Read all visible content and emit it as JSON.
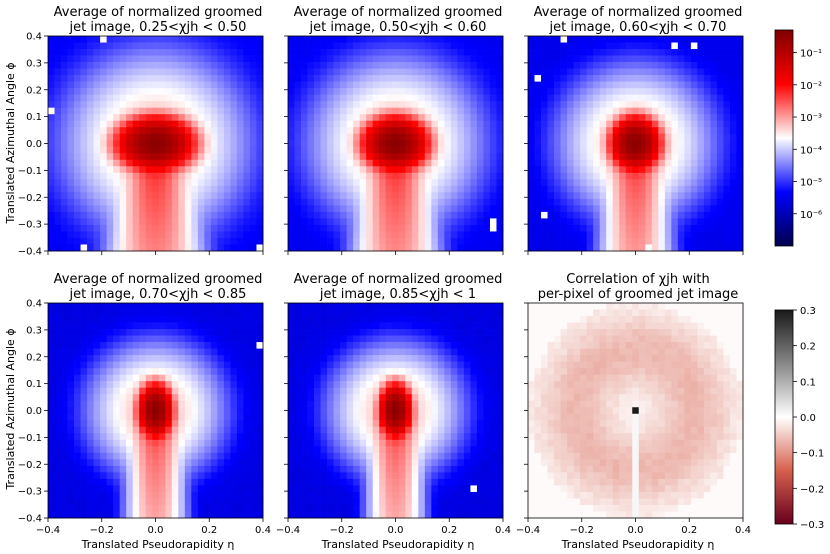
{
  "chart_data": {
    "type": "heatmap",
    "panels": [
      {
        "title_line1": "Average of normalized groomed",
        "title_line2": "jet image, 0.25<χjh < 0.50",
        "chi_low": "0.25",
        "chi_high": "0.50",
        "kind": "average",
        "lobe_width": 1.0,
        "tail_width": 1.0
      },
      {
        "title_line1": "Average of normalized groomed",
        "title_line2": "jet image, 0.50<χjh < 0.60",
        "chi_low": "0.50",
        "chi_high": "0.60",
        "kind": "average",
        "lobe_width": 0.85,
        "tail_width": 0.85
      },
      {
        "title_line1": "Average of normalized groomed",
        "title_line2": "jet image, 0.60<χjh < 0.70",
        "chi_low": "0.60",
        "chi_high": "0.70",
        "kind": "average",
        "lobe_width": 0.65,
        "tail_width": 0.6
      },
      {
        "title_line1": "Average of normalized groomed",
        "title_line2": "jet image, 0.70<χjh < 0.85",
        "chi_low": "0.70",
        "chi_high": "0.85",
        "kind": "average",
        "lobe_width": 0.45,
        "tail_width": 0.4
      },
      {
        "title_line1": "Average of normalized groomed",
        "title_line2": "jet image, 0.85<χjh < 1",
        "chi_low": "0.85",
        "chi_high": "1",
        "kind": "average",
        "lobe_width": 0.42,
        "tail_width": 0.35
      },
      {
        "title_line1": "Correlation of χjh with",
        "title_line2": "per-pixel of groomed jet image",
        "kind": "correlation"
      }
    ],
    "xlabel": "Translated Pseudorapidity η",
    "ylabel": "Translated Azimuthal Angle ϕ",
    "xlim": [
      -0.4,
      0.4
    ],
    "ylim": [
      -0.4,
      0.4
    ],
    "x_ticks": [
      "−0.4",
      "−0.2",
      "0.0",
      "0.2",
      "0.4"
    ],
    "y_ticks": [
      "0.4",
      "0.3",
      "0.2",
      "0.1",
      "0.0",
      "−0.1",
      "−0.2",
      "−0.3",
      "−0.4"
    ],
    "grid_size": 33,
    "colorbar_top": {
      "scale": "log",
      "range": [
        1e-07,
        0.5
      ],
      "colormap": "seismic",
      "tick_labels": [
        "10⁻¹",
        "10⁻²",
        "10⁻³",
        "10⁻⁴",
        "10⁻⁵",
        "10⁻⁶"
      ],
      "tick_values": [
        0.1,
        0.01,
        0.001,
        0.0001,
        1e-05,
        1e-06
      ]
    },
    "colorbar_bottom": {
      "scale": "linear",
      "range": [
        -0.3,
        0.3
      ],
      "colormap": "RdGy",
      "tick_labels": [
        "0.3",
        "0.2",
        "0.1",
        "0.0",
        "−0.1",
        "−0.2",
        "−0.3"
      ],
      "tick_values": [
        0.3,
        0.2,
        0.1,
        0.0,
        -0.1,
        -0.2,
        -0.3
      ]
    },
    "grid": false,
    "colors": {
      "seismic_low": "#00004c",
      "seismic_mid": "#ffffff",
      "seismic_high": "#800000",
      "corr_pos": "#1a1a1a",
      "corr_neg": "#67001f"
    }
  }
}
